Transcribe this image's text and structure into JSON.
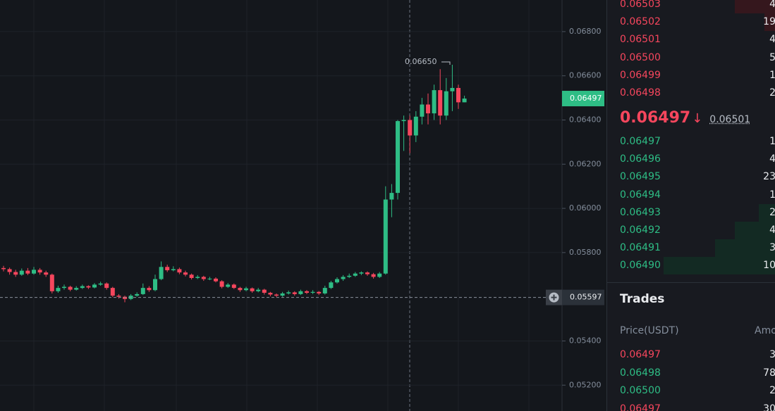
{
  "chart_data": {
    "type": "candlestick",
    "up_color": "#2ebd85",
    "down_color": "#f6465d",
    "ylim": [
      0.05083,
      0.06943
    ],
    "yticks": [
      {
        "value": 0.068,
        "label": "0.06800"
      },
      {
        "value": 0.066,
        "label": "0.06600"
      },
      {
        "value": 0.064,
        "label": "0.06400"
      },
      {
        "value": 0.062,
        "label": "0.06200"
      },
      {
        "value": 0.06,
        "label": "0.06000"
      },
      {
        "value": 0.058,
        "label": "0.05800"
      },
      {
        "value": 0.054,
        "label": "0.05400"
      },
      {
        "value": 0.052,
        "label": "0.05200"
      }
    ],
    "open": [
      0.0573,
      0.05725,
      0.05712,
      0.057,
      0.05718,
      0.05705,
      0.05722,
      0.0571,
      0.057,
      0.05625,
      0.0564,
      0.05645,
      0.05632,
      0.0564,
      0.05648,
      0.05642,
      0.05655,
      0.0566,
      0.0564,
      0.05605,
      0.056,
      0.0559,
      0.05605,
      0.05612,
      0.0564,
      0.0563,
      0.0568,
      0.05735,
      0.0572,
      0.05725,
      0.0571,
      0.057,
      0.05685,
      0.0569,
      0.0568,
      0.05682,
      0.0567,
      0.05645,
      0.05655,
      0.0564,
      0.0563,
      0.05638,
      0.05625,
      0.05632,
      0.05618,
      0.0561,
      0.05605,
      0.05615,
      0.0562,
      0.05612,
      0.05625,
      0.05618,
      0.05622,
      0.05615,
      0.0564,
      0.05665,
      0.0568,
      0.0569,
      0.05695,
      0.05705,
      0.0571,
      0.05702,
      0.0569,
      0.05705,
      0.0604,
      0.0607,
      0.06395,
      0.064,
      0.0633,
      0.06415,
      0.0647,
      0.0643,
      0.06535,
      0.0642,
      0.0653,
      0.06545,
      0.0648
    ],
    "high": [
      0.0574,
      0.05732,
      0.05722,
      0.05728,
      0.0573,
      0.05735,
      0.0573,
      0.05718,
      0.05705,
      0.0565,
      0.05655,
      0.0565,
      0.05648,
      0.05655,
      0.05652,
      0.05662,
      0.05668,
      0.05665,
      0.05645,
      0.05612,
      0.05605,
      0.05612,
      0.0562,
      0.0566,
      0.05648,
      0.057,
      0.0576,
      0.05745,
      0.05738,
      0.05732,
      0.05718,
      0.05705,
      0.05698,
      0.05695,
      0.0569,
      0.05688,
      0.05675,
      0.05662,
      0.0566,
      0.05645,
      0.05645,
      0.05642,
      0.0564,
      0.05636,
      0.05622,
      0.05615,
      0.05622,
      0.05628,
      0.05625,
      0.05632,
      0.0563,
      0.0563,
      0.05626,
      0.0565,
      0.05672,
      0.05688,
      0.05698,
      0.05705,
      0.05712,
      0.05715,
      0.05715,
      0.05708,
      0.05712,
      0.061,
      0.0611,
      0.064,
      0.0642,
      0.0642,
      0.0644,
      0.065,
      0.0652,
      0.0656,
      0.0663,
      0.0659,
      0.0665,
      0.0656,
      0.0651
    ],
    "low": [
      0.05715,
      0.057,
      0.0569,
      0.05695,
      0.05698,
      0.057,
      0.057,
      0.0569,
      0.05615,
      0.05618,
      0.05632,
      0.05625,
      0.05628,
      0.05635,
      0.05635,
      0.05638,
      0.0565,
      0.05632,
      0.05598,
      0.05592,
      0.05575,
      0.05585,
      0.056,
      0.05608,
      0.05622,
      0.05625,
      0.05675,
      0.05712,
      0.05715,
      0.05702,
      0.05692,
      0.05678,
      0.0568,
      0.05672,
      0.05675,
      0.05665,
      0.05638,
      0.0564,
      0.05635,
      0.05622,
      0.05625,
      0.05618,
      0.0562,
      0.0561,
      0.05602,
      0.05598,
      0.056,
      0.0561,
      0.05605,
      0.05608,
      0.05612,
      0.05612,
      0.05608,
      0.0561,
      0.05635,
      0.0566,
      0.05672,
      0.05685,
      0.0569,
      0.05698,
      0.05695,
      0.05682,
      0.05685,
      0.057,
      0.0596,
      0.0604,
      0.0626,
      0.0625,
      0.063,
      0.0638,
      0.0638,
      0.064,
      0.0638,
      0.064,
      0.0644,
      0.0645,
      0.0648
    ],
    "close": [
      0.05725,
      0.05712,
      0.057,
      0.05718,
      0.05705,
      0.05722,
      0.0571,
      0.057,
      0.05625,
      0.0564,
      0.05645,
      0.05632,
      0.0564,
      0.05648,
      0.05642,
      0.05655,
      0.0566,
      0.0564,
      0.05605,
      0.056,
      0.0559,
      0.05605,
      0.05612,
      0.0564,
      0.0563,
      0.0568,
      0.05735,
      0.0572,
      0.05725,
      0.0571,
      0.057,
      0.05685,
      0.0569,
      0.0568,
      0.05682,
      0.0567,
      0.05645,
      0.05655,
      0.0564,
      0.0563,
      0.05638,
      0.05625,
      0.05632,
      0.05618,
      0.0561,
      0.05605,
      0.05615,
      0.0562,
      0.05612,
      0.05625,
      0.05618,
      0.05622,
      0.05615,
      0.0564,
      0.05665,
      0.0568,
      0.0569,
      0.05695,
      0.05705,
      0.0571,
      0.05702,
      0.0569,
      0.05705,
      0.0604,
      0.0607,
      0.06395,
      0.064,
      0.0633,
      0.06415,
      0.0647,
      0.0643,
      0.06535,
      0.0642,
      0.0653,
      0.06545,
      0.0648,
      0.06497
    ],
    "high_marker": {
      "value": 0.0665,
      "label": "0.06650"
    },
    "last_price": {
      "value": 0.06497,
      "label": "0.06497"
    },
    "crosshair": {
      "value": 0.05597,
      "label": "0.05597"
    }
  },
  "order_book": {
    "asks": [
      {
        "price": "0.06503",
        "amount": "4"
      },
      {
        "price": "0.06502",
        "amount": "19"
      },
      {
        "price": "0.06501",
        "amount": "4"
      },
      {
        "price": "0.06500",
        "amount": "5"
      },
      {
        "price": "0.06499",
        "amount": "1"
      },
      {
        "price": "0.06498",
        "amount": "2"
      }
    ],
    "mid_price": "0.06497",
    "mid_arrow": "↓",
    "mark_price": "0.06501",
    "bids": [
      {
        "price": "0.06497",
        "amount": "1"
      },
      {
        "price": "0.06496",
        "amount": "4"
      },
      {
        "price": "0.06495",
        "amount": "23"
      },
      {
        "price": "0.06494",
        "amount": "1"
      },
      {
        "price": "0.06493",
        "amount": "2"
      },
      {
        "price": "0.06492",
        "amount": "4"
      },
      {
        "price": "0.06491",
        "amount": "3"
      },
      {
        "price": "0.06490",
        "amount": "10"
      }
    ]
  },
  "trades": {
    "title": "Trades",
    "price_header": "Price(USDT)",
    "amount_header": "Amo",
    "rows": [
      {
        "price": "0.06497",
        "amount": "3",
        "side": "sell"
      },
      {
        "price": "0.06498",
        "amount": "78",
        "side": "buy"
      },
      {
        "price": "0.06500",
        "amount": "2",
        "side": "buy"
      },
      {
        "price": "0.06497",
        "amount": "30",
        "side": "sell"
      }
    ]
  }
}
